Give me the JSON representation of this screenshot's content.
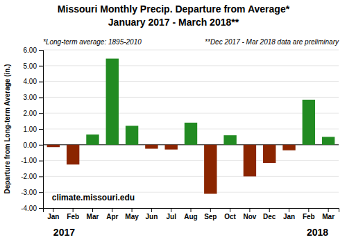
{
  "chart_data": {
    "type": "bar",
    "title": "Missouri Monthly Precip. Departure from Average*",
    "subtitle": "January 2017 - March 2018**",
    "ylabel": "Departure from Long-term Average (in.)",
    "annotations": [
      "*Long-term average: 1895-2010",
      "**Dec 2017 - Mar 2018 data are preliminary",
      "climate.missouri.edu",
      "2017",
      "2018"
    ],
    "categories": [
      "Jan",
      "Feb",
      "Mar",
      "Apr",
      "May",
      "Jun",
      "Jul",
      "Aug",
      "Sep",
      "Oct",
      "Nov",
      "Dec",
      "Jan",
      "Feb",
      "Mar"
    ],
    "values": [
      -0.15,
      -1.25,
      0.65,
      5.45,
      1.2,
      -0.25,
      -0.3,
      1.4,
      -3.1,
      0.6,
      -2.0,
      -1.15,
      -0.35,
      2.85,
      0.5
    ],
    "colors": [
      "#8B2500",
      "#8B2500",
      "#228B22",
      "#228B22",
      "#228B22",
      "#8B2500",
      "#8B2500",
      "#228B22",
      "#8B2500",
      "#228B22",
      "#8B2500",
      "#8B2500",
      "#8B2500",
      "#228B22",
      "#228B22"
    ],
    "ylim": [
      -4.0,
      6.0
    ],
    "yticks": [
      {
        "value": -4.0,
        "label": "-4.00"
      },
      {
        "value": -3.0,
        "label": "-3.00"
      },
      {
        "value": -2.0,
        "label": "-2.00"
      },
      {
        "value": -1.0,
        "label": "-1.00"
      },
      {
        "value": 0.0,
        "label": "0.00"
      },
      {
        "value": 1.0,
        "label": "1.00"
      },
      {
        "value": 2.0,
        "label": "2.00"
      },
      {
        "value": 3.0,
        "label": "3.00"
      },
      {
        "value": 4.0,
        "label": "4.00"
      },
      {
        "value": 5.0,
        "label": "5.00"
      },
      {
        "value": 6.0,
        "label": "6.00"
      }
    ],
    "grid": true
  }
}
